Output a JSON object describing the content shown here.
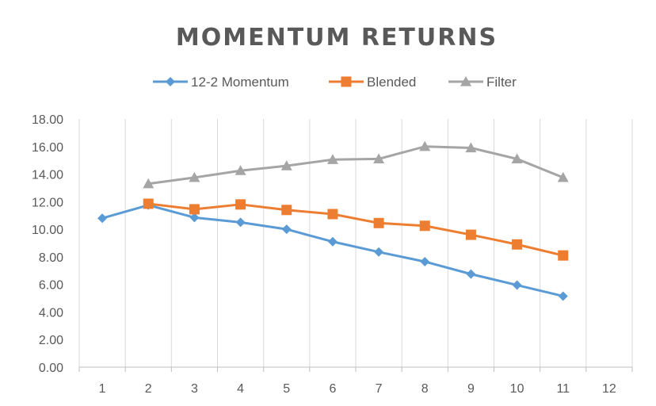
{
  "chart_data": {
    "type": "line",
    "title": "MOMENTUM RETURNS",
    "xlabel": "",
    "ylabel": "",
    "categories": [
      "1",
      "2",
      "3",
      "4",
      "5",
      "6",
      "7",
      "8",
      "9",
      "10",
      "11",
      "12"
    ],
    "y_tick_labels": [
      "0.00",
      "2.00",
      "4.00",
      "6.00",
      "8.00",
      "10.00",
      "12.00",
      "14.00",
      "16.00",
      "18.00"
    ],
    "ylim": [
      0,
      18
    ],
    "grid": "vertical",
    "legend_position": "top",
    "series": [
      {
        "name": "12-2 Momentum",
        "color": "#5b9bd5",
        "marker": "diamond",
        "x": [
          1,
          2,
          3,
          4,
          5,
          6,
          7,
          8,
          9,
          10,
          11
        ],
        "values": [
          10.8,
          11.75,
          10.85,
          10.5,
          10.0,
          9.1,
          8.35,
          7.65,
          6.75,
          5.95,
          5.15
        ]
      },
      {
        "name": "Blended",
        "color": "#ed7d31",
        "marker": "square",
        "x": [
          2,
          3,
          4,
          5,
          6,
          7,
          8,
          9,
          10,
          11
        ],
        "values": [
          11.85,
          11.45,
          11.8,
          11.4,
          11.1,
          10.45,
          10.25,
          9.6,
          8.9,
          8.1
        ]
      },
      {
        "name": "Filter",
        "color": "#a5a5a5",
        "marker": "triangle",
        "x": [
          2,
          3,
          4,
          5,
          6,
          7,
          8,
          9,
          10,
          11
        ],
        "values": [
          13.3,
          13.75,
          14.25,
          14.6,
          15.05,
          15.1,
          16.0,
          15.9,
          15.1,
          13.75
        ]
      }
    ]
  }
}
